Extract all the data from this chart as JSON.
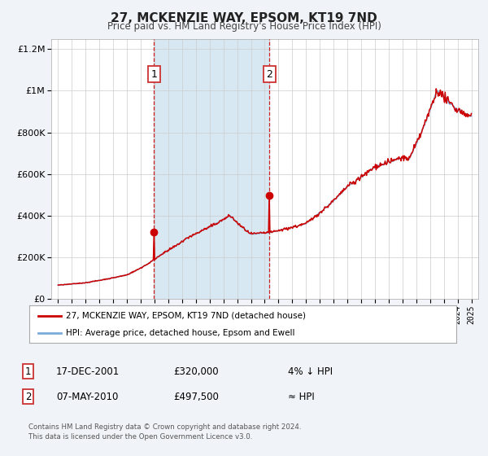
{
  "title": "27, MCKENZIE WAY, EPSOM, KT19 7ND",
  "subtitle": "Price paid vs. HM Land Registry's House Price Index (HPI)",
  "legend_line1": "27, MCKENZIE WAY, EPSOM, KT19 7ND (detached house)",
  "legend_line2": "HPI: Average price, detached house, Epsom and Ewell",
  "annotation1_date": "17-DEC-2001",
  "annotation1_price": "£320,000",
  "annotation1_hpi": "4% ↓ HPI",
  "annotation2_date": "07-MAY-2010",
  "annotation2_price": "£497,500",
  "annotation2_hpi": "≈ HPI",
  "footer1": "Contains HM Land Registry data © Crown copyright and database right 2024.",
  "footer2": "This data is licensed under the Open Government Licence v3.0.",
  "line1_color": "#cc0000",
  "line2_color": "#7aabdb",
  "point1_x": 2001.96,
  "point1_y": 320000,
  "point2_x": 2010.35,
  "point2_y": 497500,
  "vline1_x": 2001.96,
  "vline2_x": 2010.35,
  "shade_start": 2001.96,
  "shade_end": 2010.35,
  "shade_color": "#d8e8f3",
  "ylim": [
    0,
    1250000
  ],
  "xlim": [
    1994.5,
    2025.5
  ],
  "background_color": "#f0f4f8",
  "plot_bg_color": "#ffffff",
  "grid_color": "#cccccc",
  "yticks": [
    0,
    200000,
    400000,
    600000,
    800000,
    1000000,
    1200000
  ],
  "ytick_labels": [
    "£0",
    "£200K",
    "£400K",
    "£600K",
    "£800K",
    "£1M",
    "£1.2M"
  ]
}
